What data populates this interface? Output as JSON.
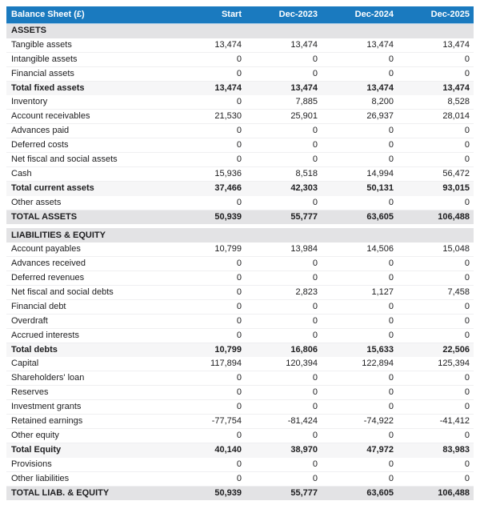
{
  "header": {
    "title": "Balance Sheet (£)",
    "columns": [
      "Start",
      "Dec-2023",
      "Dec-2024",
      "Dec-2025"
    ]
  },
  "colors": {
    "header_bg": "#1a7abf",
    "header_text": "#ffffff",
    "section_bg": "#e3e3e5",
    "subtotal_bg": "#f6f6f7",
    "total_bg": "#e3e3e5",
    "row_border": "#efeff1",
    "text": "#1d1d1f"
  },
  "chart_data": {
    "type": "table",
    "title": "Balance Sheet (£)",
    "columns": [
      "Start",
      "Dec-2023",
      "Dec-2024",
      "Dec-2025"
    ],
    "sections": [
      {
        "label": "ASSETS",
        "rows": [
          {
            "label": "Tangible assets",
            "style": "normal",
            "values": [
              "13,474",
              "13,474",
              "13,474",
              "13,474"
            ]
          },
          {
            "label": "Intangible assets",
            "style": "normal",
            "values": [
              "0",
              "0",
              "0",
              "0"
            ]
          },
          {
            "label": "Financial assets",
            "style": "normal",
            "values": [
              "0",
              "0",
              "0",
              "0"
            ]
          },
          {
            "label": "Total fixed assets",
            "style": "subtotal",
            "values": [
              "13,474",
              "13,474",
              "13,474",
              "13,474"
            ]
          },
          {
            "label": "Inventory",
            "style": "normal",
            "values": [
              "0",
              "7,885",
              "8,200",
              "8,528"
            ]
          },
          {
            "label": "Account receivables",
            "style": "normal",
            "values": [
              "21,530",
              "25,901",
              "26,937",
              "28,014"
            ]
          },
          {
            "label": "Advances paid",
            "style": "normal",
            "values": [
              "0",
              "0",
              "0",
              "0"
            ]
          },
          {
            "label": "Deferred costs",
            "style": "normal",
            "values": [
              "0",
              "0",
              "0",
              "0"
            ]
          },
          {
            "label": "Net fiscal and social assets",
            "style": "normal",
            "values": [
              "0",
              "0",
              "0",
              "0"
            ]
          },
          {
            "label": "Cash",
            "style": "normal",
            "values": [
              "15,936",
              "8,518",
              "14,994",
              "56,472"
            ]
          },
          {
            "label": "Total current assets",
            "style": "subtotal",
            "values": [
              "37,466",
              "42,303",
              "50,131",
              "93,015"
            ]
          },
          {
            "label": "Other assets",
            "style": "normal",
            "values": [
              "0",
              "0",
              "0",
              "0"
            ]
          },
          {
            "label": "TOTAL ASSETS",
            "style": "total",
            "values": [
              "50,939",
              "55,777",
              "63,605",
              "106,488"
            ]
          }
        ]
      },
      {
        "label": "LIABILITIES & EQUITY",
        "rows": [
          {
            "label": "Account payables",
            "style": "normal",
            "values": [
              "10,799",
              "13,984",
              "14,506",
              "15,048"
            ]
          },
          {
            "label": "Advances received",
            "style": "normal",
            "values": [
              "0",
              "0",
              "0",
              "0"
            ]
          },
          {
            "label": "Deferred revenues",
            "style": "normal",
            "values": [
              "0",
              "0",
              "0",
              "0"
            ]
          },
          {
            "label": "Net fiscal and social debts",
            "style": "normal",
            "values": [
              "0",
              "2,823",
              "1,127",
              "7,458"
            ]
          },
          {
            "label": "Financial debt",
            "style": "normal",
            "values": [
              "0",
              "0",
              "0",
              "0"
            ]
          },
          {
            "label": "Overdraft",
            "style": "normal",
            "values": [
              "0",
              "0",
              "0",
              "0"
            ]
          },
          {
            "label": "Accrued interests",
            "style": "normal",
            "values": [
              "0",
              "0",
              "0",
              "0"
            ]
          },
          {
            "label": "Total debts",
            "style": "subtotal",
            "values": [
              "10,799",
              "16,806",
              "15,633",
              "22,506"
            ]
          },
          {
            "label": "Capital",
            "style": "normal",
            "values": [
              "117,894",
              "120,394",
              "122,894",
              "125,394"
            ]
          },
          {
            "label": "Shareholders' loan",
            "style": "normal",
            "values": [
              "0",
              "0",
              "0",
              "0"
            ]
          },
          {
            "label": "Reserves",
            "style": "normal",
            "values": [
              "0",
              "0",
              "0",
              "0"
            ]
          },
          {
            "label": "Investment grants",
            "style": "normal",
            "values": [
              "0",
              "0",
              "0",
              "0"
            ]
          },
          {
            "label": "Retained earnings",
            "style": "normal",
            "values": [
              "-77,754",
              "-81,424",
              "-74,922",
              "-41,412"
            ]
          },
          {
            "label": "Other equity",
            "style": "normal",
            "values": [
              "0",
              "0",
              "0",
              "0"
            ]
          },
          {
            "label": "Total Equity",
            "style": "subtotal",
            "values": [
              "40,140",
              "38,970",
              "47,972",
              "83,983"
            ]
          },
          {
            "label": "Provisions",
            "style": "normal",
            "values": [
              "0",
              "0",
              "0",
              "0"
            ]
          },
          {
            "label": "Other liabilities",
            "style": "normal",
            "values": [
              "0",
              "0",
              "0",
              "0"
            ]
          },
          {
            "label": "TOTAL LIAB. & EQUITY",
            "style": "total",
            "values": [
              "50,939",
              "55,777",
              "63,605",
              "106,488"
            ]
          }
        ]
      }
    ]
  }
}
